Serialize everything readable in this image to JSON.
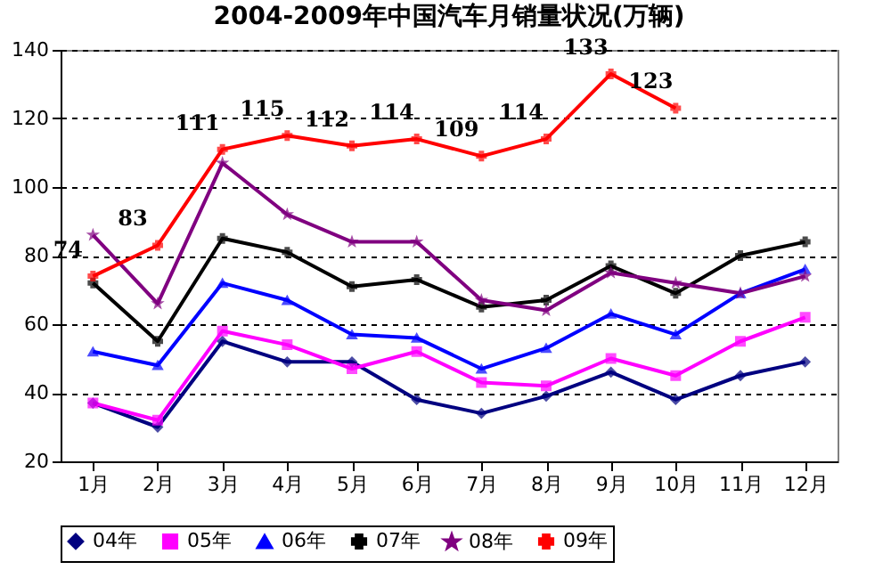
{
  "chart_data": {
    "type": "line",
    "title": "2004-2009年中国汽车月销量状况(万辆)",
    "categories": [
      "1月",
      "2月",
      "3月",
      "4月",
      "5月",
      "6月",
      "7月",
      "8月",
      "9月",
      "10月",
      "11月",
      "12月"
    ],
    "series": [
      {
        "name": "04年",
        "color": "#000080",
        "marker": "diamond",
        "values": [
          37,
          30,
          55,
          49,
          49,
          38,
          34,
          39,
          46,
          38,
          45,
          49
        ]
      },
      {
        "name": "05年",
        "color": "#ff00ff",
        "marker": "square",
        "values": [
          37,
          32,
          58,
          54,
          47,
          52,
          43,
          42,
          50,
          45,
          55,
          62
        ]
      },
      {
        "name": "06年",
        "color": "#0000ff",
        "marker": "triangle",
        "values": [
          52,
          48,
          72,
          67,
          57,
          56,
          47,
          53,
          63,
          57,
          69,
          76
        ]
      },
      {
        "name": "07年",
        "color": "#000000",
        "marker": "cross",
        "values": [
          72,
          55,
          85,
          81,
          71,
          73,
          65,
          67,
          77,
          69,
          80,
          84
        ]
      },
      {
        "name": "08年",
        "color": "#800080",
        "marker": "star",
        "values": [
          86,
          66,
          107,
          92,
          84,
          84,
          67,
          64,
          75,
          72,
          69,
          74
        ]
      },
      {
        "name": "09年",
        "color": "#ff0000",
        "marker": "cross",
        "values": [
          74,
          83,
          111,
          115,
          112,
          114,
          109,
          114,
          133,
          123,
          null,
          null
        ],
        "value_labels": [
          "74",
          "83",
          "111",
          "115",
          "112",
          "114",
          "109",
          "114",
          "133",
          "123",
          null,
          null
        ]
      }
    ],
    "ylim": [
      20,
      140
    ],
    "yticks": [
      20,
      40,
      60,
      80,
      100,
      120,
      140
    ],
    "grid": "y",
    "legend": "bottom"
  }
}
